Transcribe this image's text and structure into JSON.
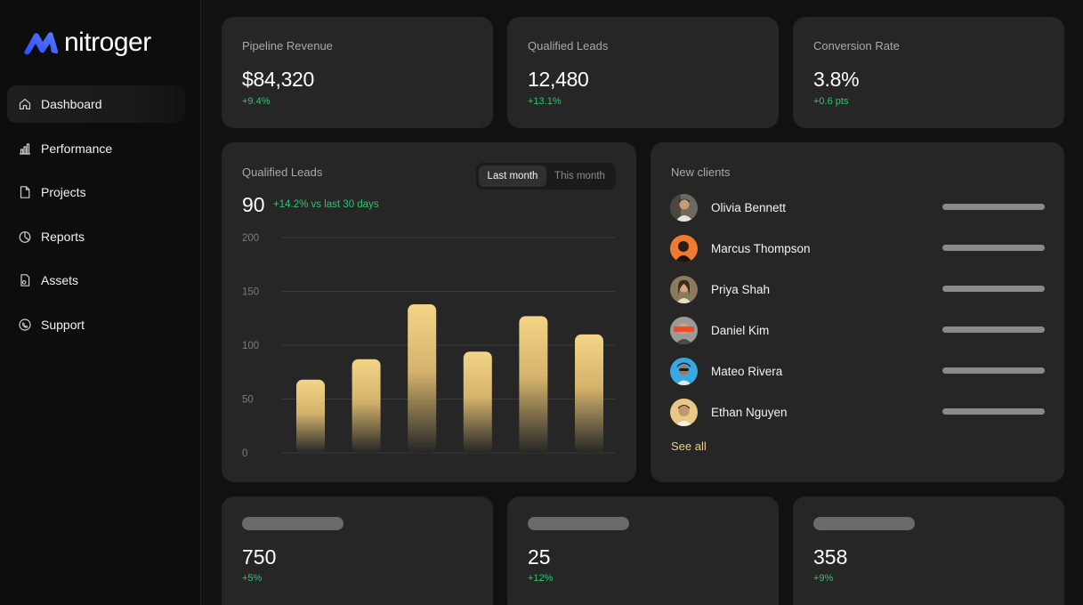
{
  "brand": {
    "name": "nitroger"
  },
  "sidebar": {
    "items": [
      {
        "label": "Dashboard",
        "icon": "home-icon",
        "active": true
      },
      {
        "label": "Performance",
        "icon": "bar-chart-icon",
        "active": false
      },
      {
        "label": "Projects",
        "icon": "document-icon",
        "active": false
      },
      {
        "label": "Reports",
        "icon": "pie-chart-icon",
        "active": false
      },
      {
        "label": "Assets",
        "icon": "file-icon",
        "active": false
      },
      {
        "label": "Support",
        "icon": "support-icon",
        "active": false
      }
    ]
  },
  "stats": [
    {
      "label": "Pipeline Revenue",
      "value": "$84,320",
      "delta": "+9.4%"
    },
    {
      "label": "Qualified Leads",
      "value": "12,480",
      "delta": "+13.1%"
    },
    {
      "label": "Conversion Rate",
      "value": "3.8%",
      "delta": "+0.6 pts"
    }
  ],
  "leads_chart": {
    "title": "Qualified Leads",
    "toggle": {
      "last_month": "Last month",
      "this_month": "This month",
      "selected": "Last month"
    },
    "total": "90",
    "delta": "+14.2% vs last 30 days"
  },
  "chart_data": {
    "type": "bar",
    "title": "Qualified Leads",
    "categories": [
      "",
      "",
      "",
      "",
      "",
      ""
    ],
    "values": [
      68,
      87,
      138,
      94,
      127,
      110
    ],
    "yticks": [
      "200",
      "150",
      "100",
      "50",
      "0"
    ],
    "ylim": [
      0,
      200
    ],
    "grid": true,
    "bar_color": "#f0cf7e"
  },
  "clients": {
    "title": "New clients",
    "items": [
      {
        "name": "Olivia Bennett"
      },
      {
        "name": "Marcus Thompson"
      },
      {
        "name": "Priya Shah"
      },
      {
        "name": "Daniel Kim"
      },
      {
        "name": "Mateo Rivera"
      },
      {
        "name": "Ethan Nguyen"
      }
    ],
    "see_all": "See all"
  },
  "bottom_stats": [
    {
      "value": "750",
      "delta": "+5%"
    },
    {
      "value": "25",
      "delta": "+12%"
    },
    {
      "value": "358",
      "delta": "+9%"
    }
  ],
  "colors": {
    "accent_green": "#2fc56f",
    "accent_gold": "#f1cf7a",
    "brand_blue": "#3d5cff",
    "card_bg": "#262626",
    "page_bg": "#111111"
  }
}
